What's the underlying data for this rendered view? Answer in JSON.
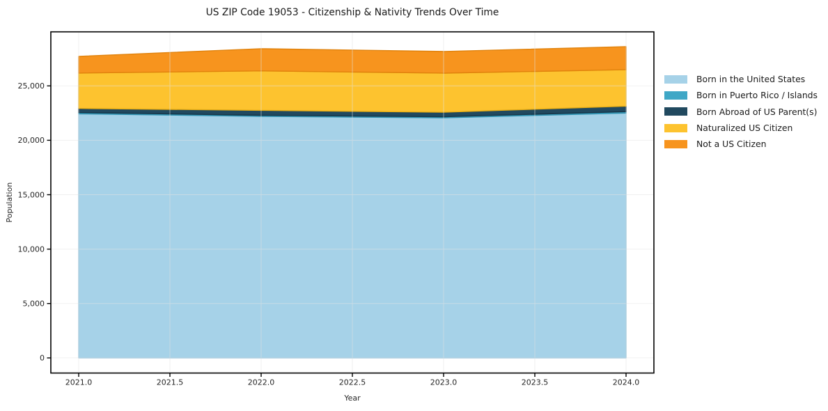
{
  "title": "US ZIP Code 19053 - Citizenship & Nativity Trends Over Time",
  "chart_data": {
    "type": "area",
    "stacked": true,
    "title": "US ZIP Code 19053 - Citizenship & Nativity Trends Over Time",
    "xlabel": "Year",
    "ylabel": "Population",
    "x": [
      2021,
      2022,
      2023,
      2024
    ],
    "series": [
      {
        "name": "Born in the United States",
        "color": "#a6d2e8",
        "edge": "#88c0dc",
        "values": [
          22430,
          22200,
          22070,
          22500
        ]
      },
      {
        "name": "Born in Puerto Rico / Islands",
        "color": "#3fa7c6",
        "edge": "#2e91af",
        "values": [
          120,
          100,
          95,
          130
        ]
      },
      {
        "name": "Born Abroad of US Parent(s)",
        "color": "#21495f",
        "edge": "#163548",
        "values": [
          385,
          455,
          415,
          510
        ]
      },
      {
        "name": "Naturalized US Citizen",
        "color": "#fdc32f",
        "edge": "#e9ae14",
        "values": [
          3240,
          3630,
          3590,
          3350
        ]
      },
      {
        "name": "Not a US Citizen",
        "color": "#f7941e",
        "edge": "#e0820c",
        "values": [
          1540,
          2035,
          1990,
          2120
        ]
      }
    ],
    "stack_totals": [
      27715,
      28420,
      28160,
      28610
    ],
    "x_ticks": [
      "2021.0",
      "2021.5",
      "2022.0",
      "2022.5",
      "2023.0",
      "2023.5",
      "2024.0"
    ],
    "x_tick_values": [
      2021.0,
      2021.5,
      2022.0,
      2022.5,
      2023.0,
      2023.5,
      2024.0
    ],
    "y_ticks": [
      "0",
      "5,000",
      "10,000",
      "15,000",
      "20,000",
      "25,000"
    ],
    "y_tick_values": [
      0,
      5000,
      10000,
      15000,
      20000,
      25000
    ],
    "ylim": [
      -1390,
      29970
    ],
    "xlim": [
      2020.84,
      2024.15
    ],
    "grid": true,
    "legend_position": "right",
    "text_color": "#262626",
    "grid_color": "#e3e3e3",
    "frame_color": "#000000"
  }
}
